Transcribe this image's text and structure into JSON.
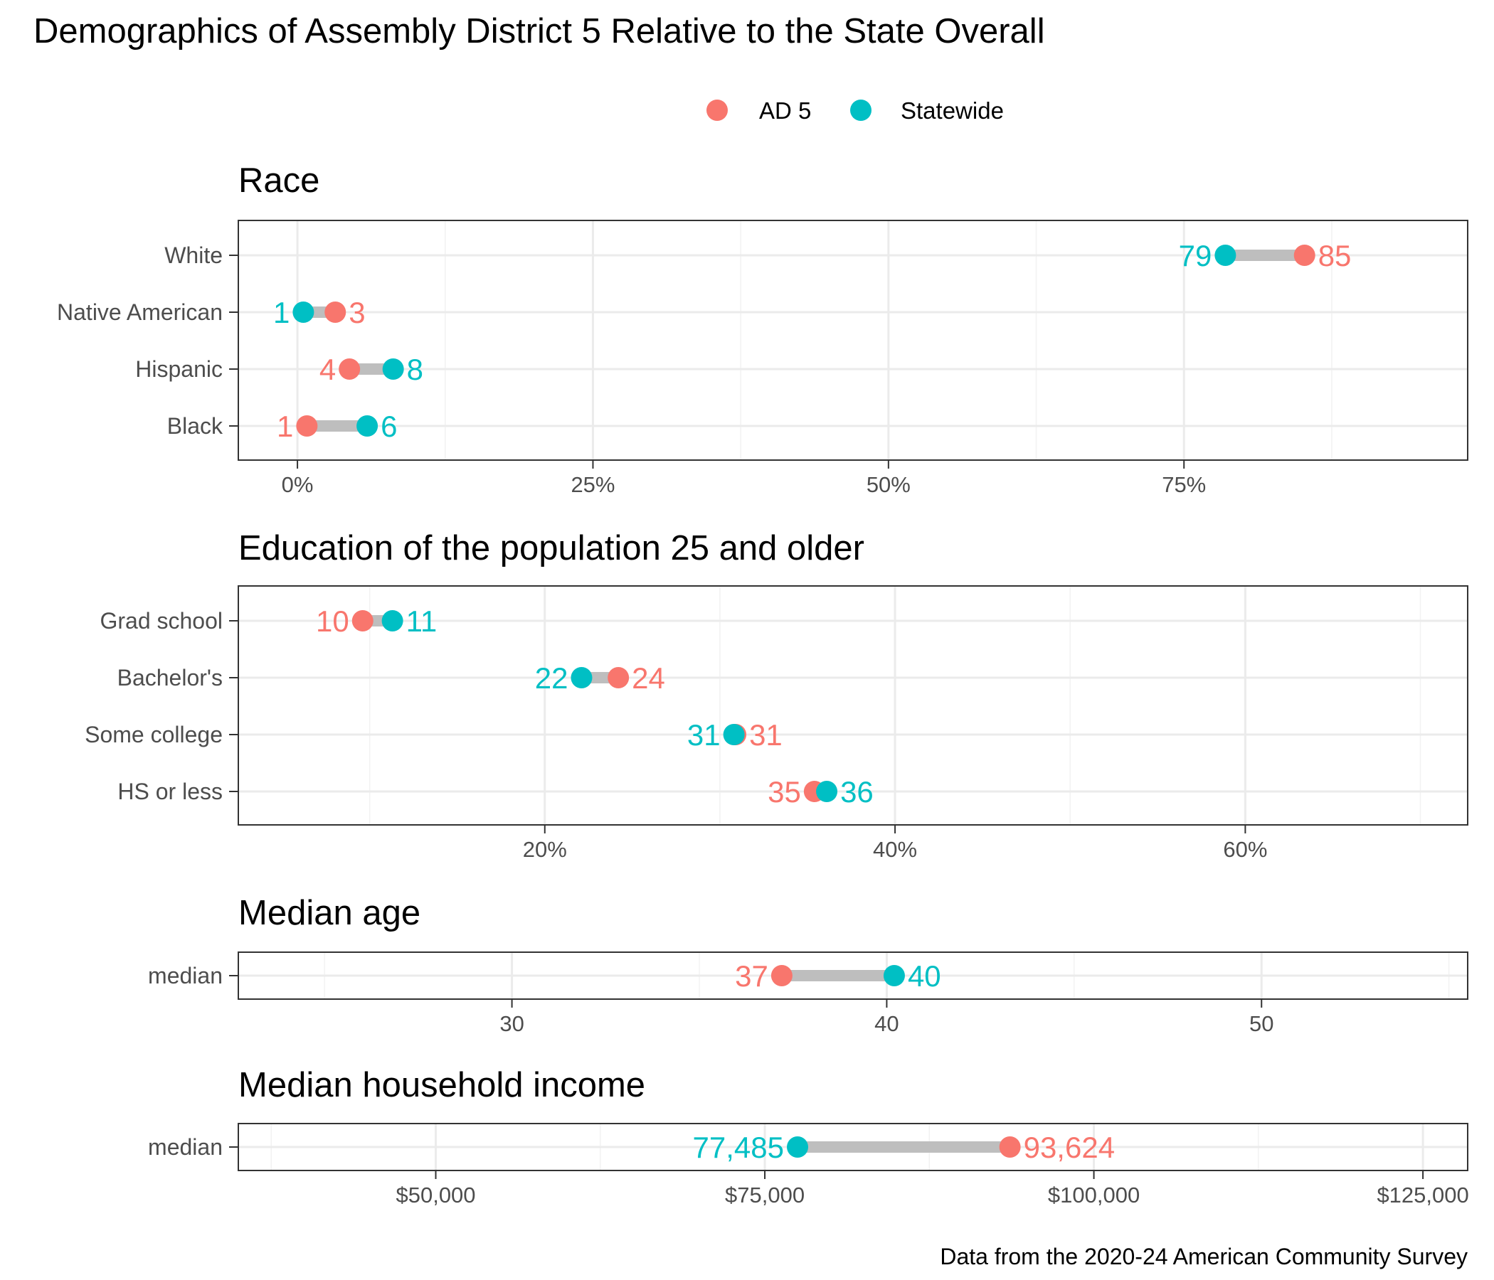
{
  "title": "Demographics of Assembly District 5 Relative to the State Overall",
  "caption": "Data from the 2020-24 American Community Survey",
  "legend": [
    {
      "label": "AD 5",
      "color": "#F8766D"
    },
    {
      "label": "Statewide",
      "color": "#00BFC4"
    }
  ],
  "connector_color": "#BEBEBE",
  "chart_data": [
    {
      "type": "dumbbell",
      "title": "Race",
      "xlim": [
        -5,
        99
      ],
      "major_ticks": [
        0,
        25,
        50,
        75
      ],
      "tick_labels": [
        "0%",
        "25%",
        "50%",
        "75%"
      ],
      "minor_ticks": [
        12.5,
        37.5,
        62.5,
        87.5
      ],
      "categories": [
        "White",
        "Native American",
        "Hispanic",
        "Black"
      ],
      "series": [
        {
          "name": "AD 5",
          "values": [
            85.2,
            3.2,
            4.4,
            0.8
          ],
          "labels": [
            "85",
            "3",
            "4",
            "1"
          ]
        },
        {
          "name": "Statewide",
          "values": [
            78.5,
            0.5,
            8.1,
            5.9
          ],
          "labels": [
            "79",
            "1",
            "8",
            "6"
          ]
        }
      ]
    },
    {
      "type": "dumbbell",
      "title": "Education of the population 25 and older",
      "xlim": [
        2.5,
        72.7
      ],
      "major_ticks": [
        20,
        40,
        60
      ],
      "tick_labels": [
        "20%",
        "40%",
        "60%"
      ],
      "minor_ticks": [
        10,
        30,
        50,
        70
      ],
      "categories": [
        "Grad school",
        "Bachelor's",
        "Some college",
        "HS or less"
      ],
      "series": [
        {
          "name": "AD 5",
          "values": [
            9.6,
            24.2,
            30.9,
            35.4
          ],
          "labels": [
            "10",
            "24",
            "31",
            "35"
          ]
        },
        {
          "name": "Statewide",
          "values": [
            11.3,
            22.1,
            30.8,
            36.1
          ],
          "labels": [
            "11",
            "22",
            "31",
            "36"
          ]
        }
      ]
    },
    {
      "type": "dumbbell",
      "title": "Median age",
      "xlim": [
        22.7,
        55.5
      ],
      "major_ticks": [
        30,
        40,
        50
      ],
      "tick_labels": [
        "30",
        "40",
        "50"
      ],
      "minor_ticks": [
        25,
        35,
        45,
        55
      ],
      "categories": [
        "median"
      ],
      "series": [
        {
          "name": "AD 5",
          "values": [
            37.2
          ],
          "labels": [
            "37"
          ]
        },
        {
          "name": "Statewide",
          "values": [
            40.2
          ],
          "labels": [
            "40"
          ]
        }
      ]
    },
    {
      "type": "dumbbell",
      "title": "Median household income",
      "xlim": [
        35000,
        128400
      ],
      "major_ticks": [
        50000,
        75000,
        100000,
        125000
      ],
      "tick_labels": [
        "$50,000",
        "$75,000",
        "$100,000",
        "$125,000"
      ],
      "minor_ticks": [
        37500,
        62500,
        87500,
        112500
      ],
      "categories": [
        "median"
      ],
      "series": [
        {
          "name": "AD 5",
          "values": [
            93624
          ],
          "labels": [
            "93,624"
          ]
        },
        {
          "name": "Statewide",
          "values": [
            77485
          ],
          "labels": [
            "77,485"
          ]
        }
      ]
    }
  ]
}
